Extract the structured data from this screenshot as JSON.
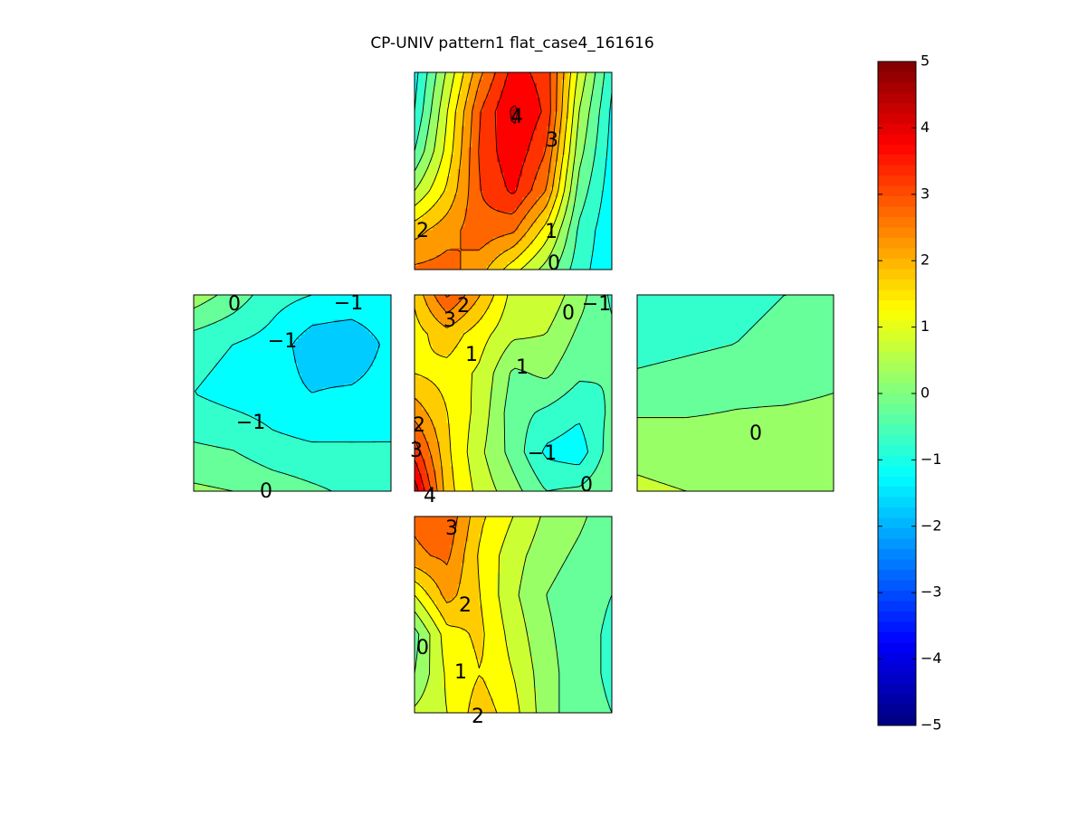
{
  "chart_data": {
    "type": "heatmap",
    "title": "CP-UNIV pattern1 flat_case4_161616",
    "colormap": "jet",
    "clim": [
      -5,
      5
    ],
    "colorbar": {
      "ticks": [
        5,
        4,
        3,
        2,
        1,
        0,
        -1,
        -2,
        -3,
        -4,
        -5
      ],
      "tick_labels": [
        "5",
        "4",
        "3",
        "2",
        "1",
        "0",
        "−1",
        "−2",
        "−3",
        "−4",
        "−5"
      ]
    },
    "panels": [
      {
        "name": "top",
        "values": [
          [
            -1.2,
            0.6,
            2.4,
            3.7,
            3.3,
            0.9,
            -0.9
          ],
          [
            -1.0,
            1.0,
            3.0,
            4.1,
            3.4,
            0.5,
            -1.1
          ],
          [
            -0.5,
            1.2,
            3.1,
            3.9,
            3.0,
            0.2,
            -1.2
          ],
          [
            0.5,
            1.6,
            3.0,
            3.6,
            2.5,
            -0.2,
            -1.3
          ],
          [
            1.8,
            2.3,
            2.8,
            2.6,
            1.3,
            -0.6,
            -1.4
          ],
          [
            2.6,
            2.7,
            2.2,
            1.2,
            0.3,
            -0.8,
            -1.4
          ]
        ],
        "contour_labels": [
          "4",
          "3",
          "2",
          "1",
          "0"
        ]
      },
      {
        "name": "left",
        "values": [
          [
            0.3,
            -0.2,
            -0.8,
            -1.0,
            -1.0,
            -1.0
          ],
          [
            -0.8,
            -1.0,
            -1.2,
            -1.8,
            -2.0,
            -1.3
          ],
          [
            -1.0,
            -1.2,
            -1.3,
            -1.5,
            -1.4,
            -1.2
          ],
          [
            -0.5,
            -0.6,
            -0.9,
            -1.0,
            -1.0,
            -1.0
          ],
          [
            0.1,
            0.0,
            -0.2,
            -0.4,
            -0.6,
            -0.7
          ]
        ],
        "contour_labels": [
          "0",
          "−1",
          "−1",
          "−1",
          "0"
        ]
      },
      {
        "name": "center",
        "values": [
          [
            1.6,
            3.1,
            2.0,
            0.8,
            0.9,
            0.2,
            -0.6
          ],
          [
            1.3,
            1.8,
            1.2,
            0.6,
            0.5,
            -0.1,
            -0.4
          ],
          [
            1.5,
            1.3,
            0.9,
            -0.1,
            0.1,
            -0.4,
            -0.5
          ],
          [
            2.3,
            1.5,
            0.8,
            -0.3,
            -0.6,
            -0.9,
            -0.4
          ],
          [
            3.3,
            1.6,
            0.6,
            -0.2,
            -1.1,
            -1.3,
            -0.2
          ],
          [
            4.3,
            1.7,
            0.8,
            0.2,
            -0.5,
            -0.4,
            0.0
          ]
        ],
        "contour_labels": [
          "2",
          "3",
          "1",
          "1",
          "0",
          "−1",
          "2",
          "3",
          "−1",
          "0",
          "4"
        ]
      },
      {
        "name": "right",
        "values": [
          [
            -0.8,
            -0.7,
            -0.6,
            -0.5,
            -0.5
          ],
          [
            -0.7,
            -0.6,
            -0.5,
            -0.4,
            -0.3
          ],
          [
            -0.3,
            -0.2,
            -0.1,
            -0.1,
            0.0
          ],
          [
            0.3,
            0.2,
            0.2,
            0.3,
            0.3
          ],
          [
            0.6,
            0.5,
            0.5,
            0.4,
            0.4
          ]
        ],
        "contour_labels": [
          "0"
        ]
      },
      {
        "name": "bottom",
        "values": [
          [
            2.6,
            2.9,
            1.6,
            1.0,
            0.4,
            0.1,
            -0.3
          ],
          [
            2.4,
            2.6,
            1.4,
            0.7,
            0.2,
            -0.1,
            -0.4
          ],
          [
            1.0,
            2.2,
            1.5,
            0.6,
            0.0,
            -0.3,
            -0.5
          ],
          [
            -0.2,
            1.3,
            1.6,
            0.8,
            0.1,
            -0.3,
            -0.6
          ],
          [
            0.0,
            1.1,
            1.5,
            1.0,
            0.2,
            -0.3,
            -0.6
          ],
          [
            0.6,
            1.0,
            1.8,
            1.2,
            0.2,
            -0.3,
            -0.5
          ]
        ],
        "contour_labels": [
          "3",
          "2",
          "0",
          "1",
          "2"
        ]
      }
    ]
  }
}
